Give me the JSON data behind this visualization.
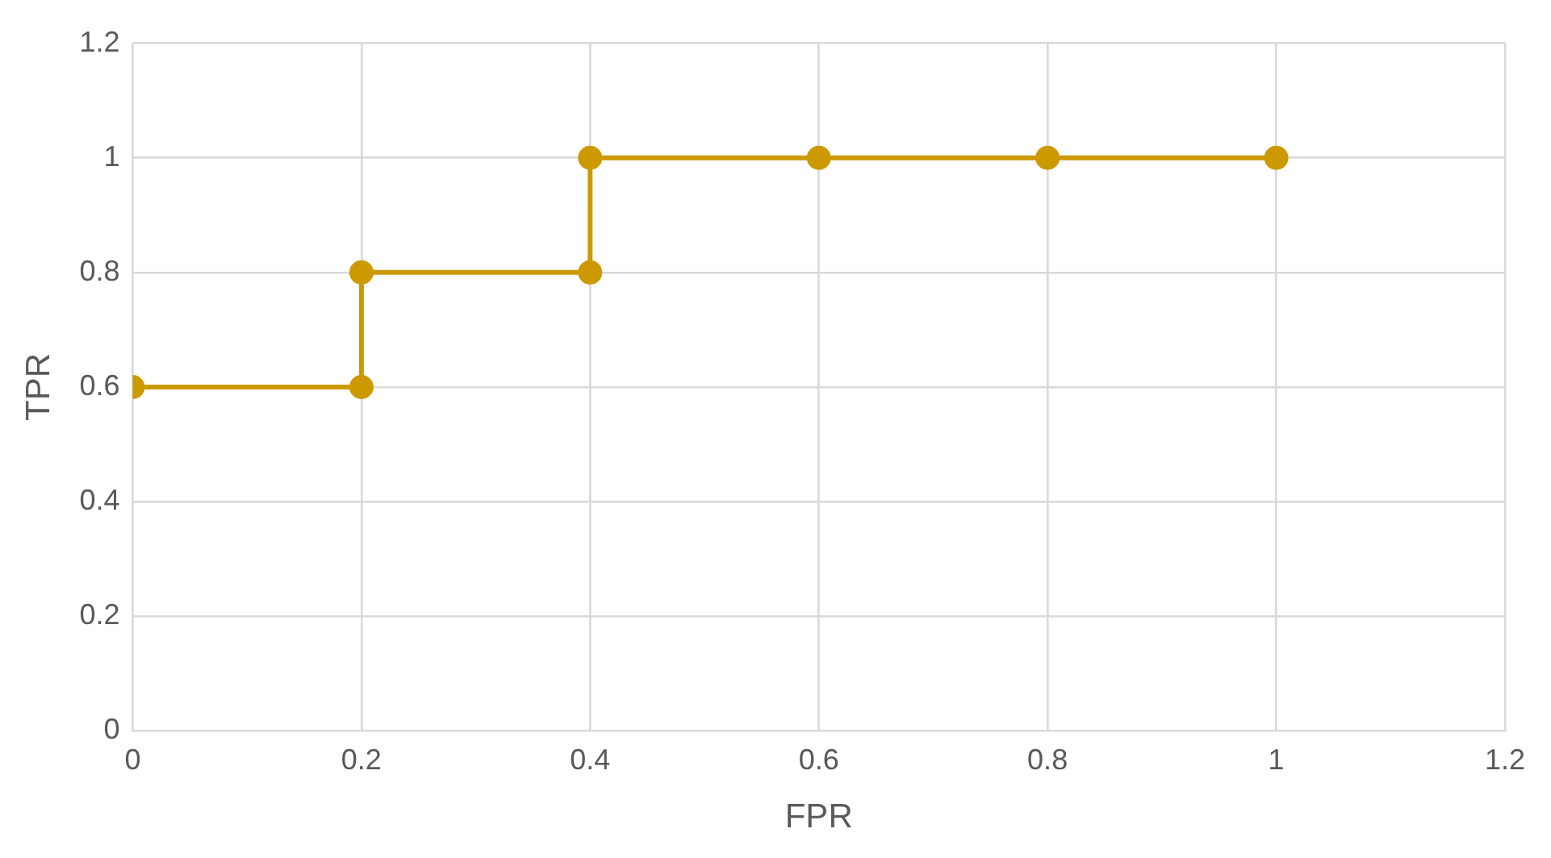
{
  "chart_data": {
    "type": "line",
    "xlabel": "FPR",
    "ylabel": "TPR",
    "x": [
      0,
      0.2,
      0.2,
      0.4,
      0.4,
      0.6,
      0.8,
      1
    ],
    "series": [
      {
        "color": "#cc9900",
        "values": [
          0.6,
          0.6,
          0.8,
          0.8,
          1,
          1,
          1,
          1
        ]
      }
    ],
    "xlim": [
      0,
      1.2
    ],
    "xticks": [
      0,
      0.2,
      0.4,
      0.6,
      0.8,
      1,
      1.2
    ],
    "ylim": [
      0,
      1.2
    ],
    "yticks": [
      0,
      0.2,
      0.4,
      0.6,
      0.8,
      1,
      1.2
    ],
    "grid": true,
    "legend": false,
    "marker": "circle",
    "line_style": "solid"
  }
}
